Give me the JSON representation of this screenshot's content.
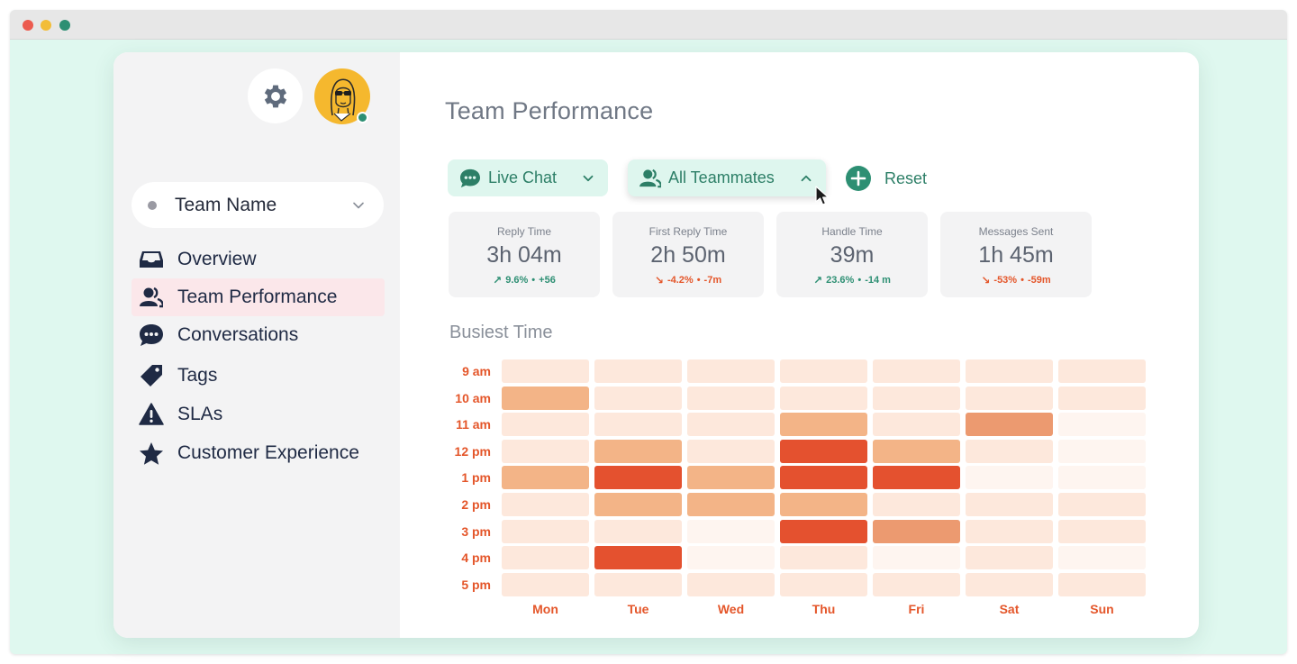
{
  "colors": {
    "accent_green": "#2d8f73",
    "heat_scale": [
      "#fef5f0",
      "#fde8dc",
      "#f9d1b7",
      "#f3b487",
      "#ec9a70",
      "#e4512f"
    ]
  },
  "sidebar": {
    "team_select": {
      "label": "Team Name"
    },
    "items": [
      {
        "label": "Overview",
        "icon": "inbox-icon",
        "active": false
      },
      {
        "label": "Team Performance",
        "icon": "people-icon",
        "active": true
      },
      {
        "label": "Conversations",
        "icon": "chat-bubble-icon",
        "active": false
      },
      {
        "label": "Tags",
        "icon": "tag-icon",
        "active": false
      },
      {
        "label": "SLAs",
        "icon": "warning-icon",
        "active": false
      },
      {
        "label": "Customer Experience",
        "icon": "star-icon",
        "active": false
      }
    ]
  },
  "header": {
    "title": "Team Performance"
  },
  "filters": {
    "channel": {
      "label": "Live Chat",
      "icon": "chat-bubble-icon"
    },
    "teammates": {
      "label": "All Teammates",
      "icon": "people-icon",
      "expanded": true
    },
    "reset": {
      "label": "Reset",
      "icon": "plus-circle-icon"
    }
  },
  "metrics": [
    {
      "label": "Reply Time",
      "value": "3h 04m",
      "direction": "up",
      "percent": "9.6%",
      "delta": "+56"
    },
    {
      "label": "First Reply Time",
      "value": "2h 50m",
      "direction": "down",
      "percent": "-4.2%",
      "delta": "-7m"
    },
    {
      "label": "Handle Time",
      "value": "39m",
      "direction": "up",
      "percent": "23.6%",
      "delta": "-14 m"
    },
    {
      "label": "Messages Sent",
      "value": "1h 45m",
      "direction": "down",
      "percent": "-53%",
      "delta": "-59m"
    }
  ],
  "busiest_time": {
    "title": "Busiest Time",
    "hours": [
      "9 am",
      "10 am",
      "11 am",
      "12 pm",
      "1 pm",
      "2 pm",
      "3 pm",
      "4 pm",
      "5 pm"
    ],
    "days": [
      "Mon",
      "Tue",
      "Wed",
      "Thu",
      "Fri",
      "Sat",
      "Sun"
    ],
    "levels": [
      [
        1,
        1,
        1,
        1,
        1,
        1,
        1
      ],
      [
        3,
        1,
        1,
        1,
        1,
        1,
        1
      ],
      [
        1,
        1,
        1,
        3,
        1,
        4,
        0
      ],
      [
        1,
        3,
        1,
        5,
        3,
        1,
        0
      ],
      [
        3,
        5,
        3,
        5,
        5,
        0,
        0
      ],
      [
        1,
        3,
        3,
        3,
        1,
        1,
        1
      ],
      [
        1,
        1,
        0,
        5,
        4,
        1,
        1
      ],
      [
        1,
        5,
        0,
        1,
        0,
        1,
        0
      ],
      [
        1,
        1,
        1,
        1,
        1,
        1,
        1
      ]
    ]
  }
}
